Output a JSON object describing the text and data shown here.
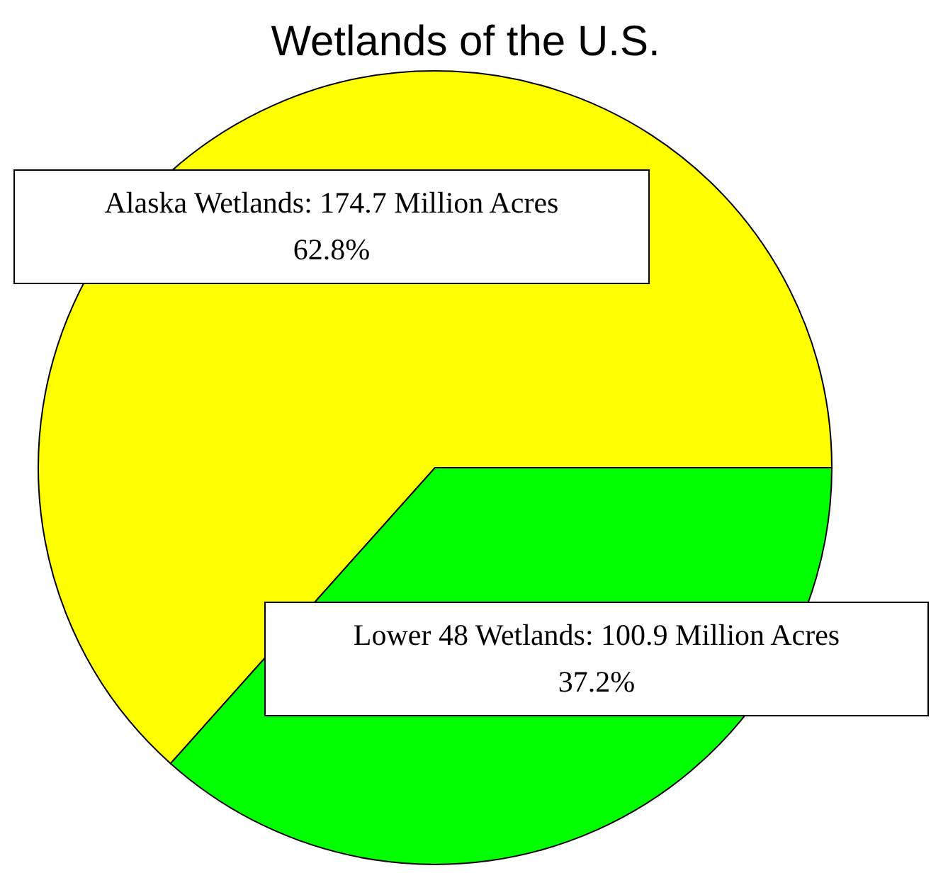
{
  "chart_data": {
    "type": "pie",
    "title": "Wetlands of the U.S.",
    "categories": [
      "Alaska Wetlands",
      "Lower 48 Wetlands"
    ],
    "values": [
      174.7,
      100.9
    ],
    "colors": [
      "#ffff00",
      "#00ff00"
    ],
    "value_labels": [
      "174.7 Million Acres\n62.8%",
      "100.9 Million Acres\n37.2%"
    ],
    "legend": false
  }
}
